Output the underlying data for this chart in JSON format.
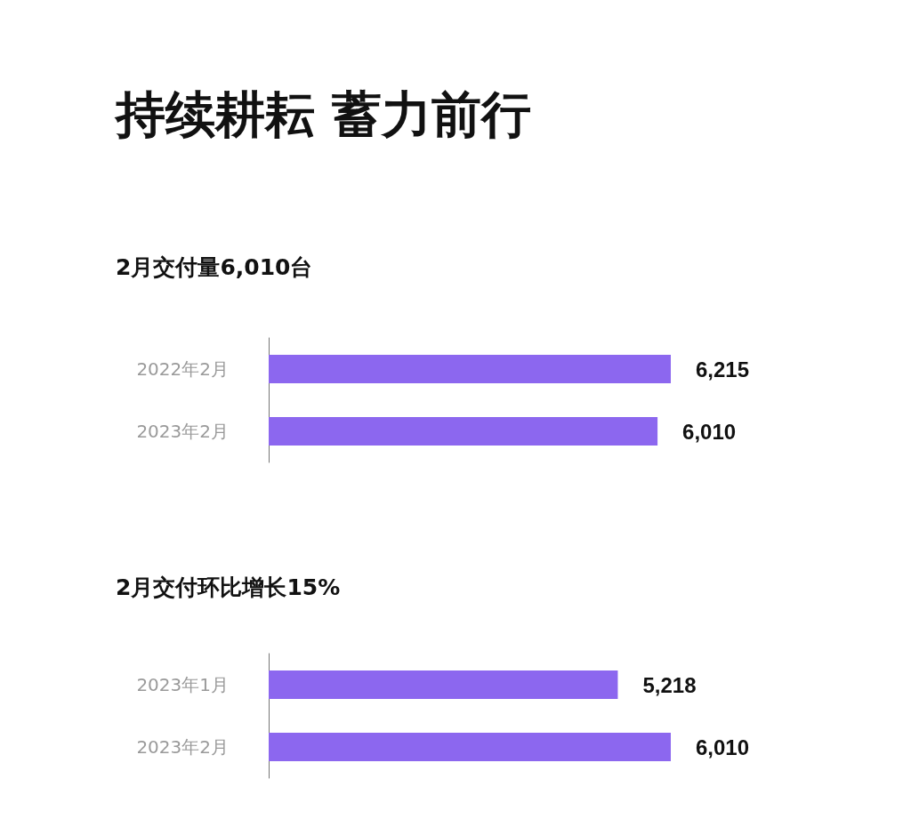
{
  "chart_data": [
    {
      "type": "bar",
      "orientation": "horizontal",
      "title": "持续耕耘 蓄力前行",
      "subtitle": "2月交付量6,010台",
      "categories": [
        "2022年2月",
        "2023年2月"
      ],
      "values": [
        6215,
        6010
      ],
      "value_labels": [
        "6,215",
        "6,010"
      ],
      "color": "#8c67ef"
    },
    {
      "type": "bar",
      "orientation": "horizontal",
      "title": "2月交付环比增长15%",
      "categories": [
        "2023年1月",
        "2023年2月"
      ],
      "values": [
        5218,
        6010
      ],
      "value_labels": [
        "5,218",
        "6,010"
      ],
      "color": "#8c67ef"
    }
  ]
}
